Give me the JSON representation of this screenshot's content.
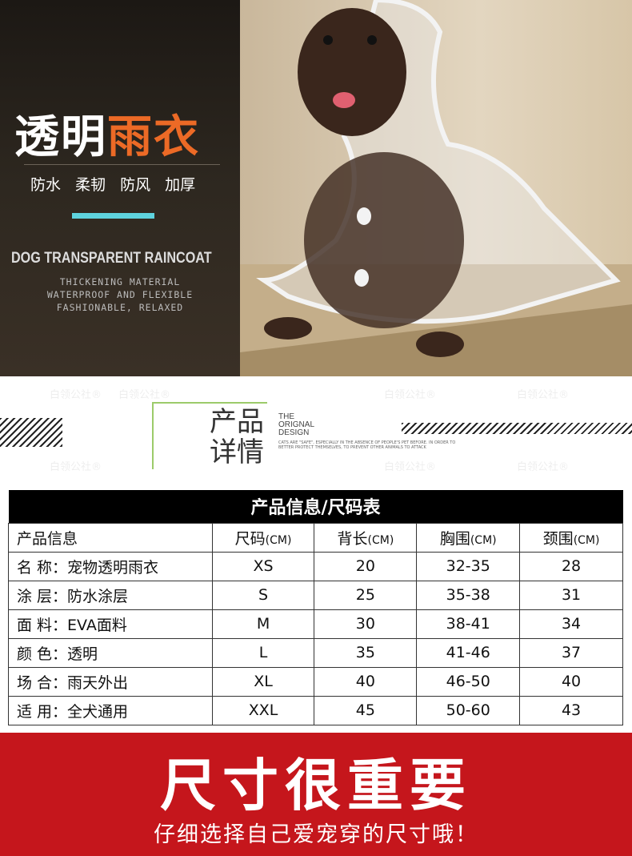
{
  "hero": {
    "title_main": "透明",
    "title_accent": "雨衣",
    "features": "防水 柔韧 防风 加厚",
    "en_title": "DOG TRANSPARENT RAINCOAT",
    "en_lines": [
      "THICKENING MATERIAL",
      "WATERPROOF AND FLEXIBLE",
      "FASHIONABLE, RELAXED"
    ]
  },
  "watermark": "白领公社®",
  "section": {
    "title_line1": "产品",
    "title_line2": "详情",
    "en": [
      "THE",
      "ORIGNAL",
      "DESIGN"
    ],
    "small_text": "CATS ARE \"SAFE\", ESPECIALLY IN THE ABSENCE OF PEOPLE'S PET BEFORE. IN ORDER TO BETTER PROTECT THEMSELVES, TO PREVENT OTHER ANIMALS TO ATTACK"
  },
  "table": {
    "caption": "产品信息/尺码表",
    "headers": [
      {
        "main": "产品信息",
        "unit": ""
      },
      {
        "main": "尺码",
        "unit": "(CM)"
      },
      {
        "main": "背长",
        "unit": "(CM)"
      },
      {
        "main": "胸围",
        "unit": "(CM)"
      },
      {
        "main": "颈围",
        "unit": "(CM)"
      }
    ],
    "rows": [
      [
        "名 称：宠物透明雨衣",
        "XS",
        "20",
        "32-35",
        "28"
      ],
      [
        "涂 层：防水涂层",
        "S",
        "25",
        "35-38",
        "31"
      ],
      [
        "面 料：EVA面料",
        "M",
        "30",
        "38-41",
        "34"
      ],
      [
        "颜 色：透明",
        "L",
        "35",
        "41-46",
        "37"
      ],
      [
        "场 合：雨天外出",
        "XL",
        "40",
        "46-50",
        "40"
      ],
      [
        "适 用：全犬通用",
        "XXL",
        "45",
        "50-60",
        "43"
      ]
    ]
  },
  "banner": {
    "headline": "尺寸很重要",
    "subline": "仔细选择自己爱宠穿的尺寸哦！"
  },
  "colors": {
    "accent": "#ec6a26",
    "cyan": "#5ed3de",
    "red": "#c5161c",
    "green": "#9ccb6a"
  }
}
